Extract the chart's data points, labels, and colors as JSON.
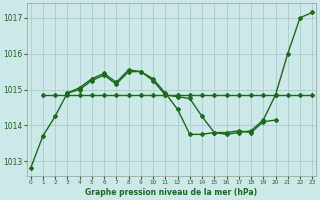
{
  "bg_color": "#cce8e8",
  "grid_color": "#aacccc",
  "line_color": "#1a6b1a",
  "xlabel": "Graphe pression niveau de la mer (hPa)",
  "ylabel_ticks": [
    1013,
    1014,
    1015,
    1016,
    1017
  ],
  "xlabel_ticks": [
    0,
    1,
    2,
    3,
    4,
    5,
    6,
    7,
    8,
    9,
    10,
    11,
    12,
    13,
    14,
    15,
    16,
    17,
    18,
    19,
    20,
    21,
    22,
    23
  ],
  "ylim": [
    1012.6,
    1017.4
  ],
  "xlim": [
    -0.3,
    23.3
  ],
  "line1_x": [
    0,
    1,
    2,
    3,
    4,
    5,
    6,
    7,
    8,
    9,
    10,
    11,
    12,
    13,
    14,
    15,
    16,
    17,
    18,
    19,
    20,
    21,
    22,
    23
  ],
  "line1_y": [
    1012.8,
    1013.7,
    1014.25,
    1014.9,
    1015.0,
    1015.25,
    1015.4,
    1015.15,
    1015.5,
    1015.5,
    1015.25,
    1014.85,
    1014.8,
    1014.75,
    1014.25,
    1013.8,
    1013.75,
    1013.8,
    1013.85,
    1014.15,
    1014.85,
    1016.0,
    1017.0,
    1017.15
  ],
  "line2_x": [
    1,
    2,
    3,
    4,
    5,
    6,
    7,
    8,
    9,
    10,
    11,
    12,
    13,
    14,
    15,
    16,
    17,
    18,
    19,
    20,
    21,
    22,
    23
  ],
  "line2_y": [
    1014.85,
    1014.85,
    1014.85,
    1014.85,
    1014.85,
    1014.85,
    1014.85,
    1014.85,
    1014.85,
    1014.85,
    1014.85,
    1014.85,
    1014.85,
    1014.85,
    1014.85,
    1014.85,
    1014.85,
    1014.85,
    1014.85,
    1014.85,
    1014.85,
    1014.85,
    1014.85
  ],
  "line3_x": [
    3,
    4,
    5,
    6,
    7,
    8,
    9,
    10,
    11,
    12,
    13,
    14,
    15,
    16,
    17,
    18,
    19,
    20
  ],
  "line3_y": [
    1014.9,
    1015.05,
    1015.3,
    1015.45,
    1015.2,
    1015.55,
    1015.5,
    1015.3,
    1014.9,
    1014.45,
    1013.75,
    1013.75,
    1013.8,
    1013.8,
    1013.85,
    1013.8,
    1014.1,
    1014.15
  ],
  "marker": "D",
  "markersize": 2.0,
  "linewidth": 1.0,
  "ytick_fontsize": 5.5,
  "xtick_fontsize": 4.2,
  "xlabel_fontsize": 5.5
}
